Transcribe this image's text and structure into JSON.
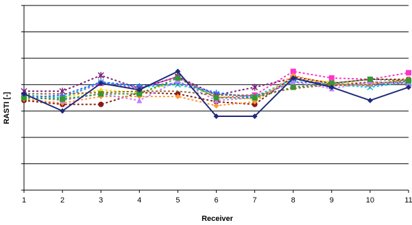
{
  "chart_data": {
    "type": "line",
    "title": "",
    "xlabel": "Receiver",
    "ylabel": "RASTI [-]",
    "x_ticks": [
      "1",
      "2",
      "3",
      "4",
      "5",
      "6",
      "7",
      "8",
      "9",
      "10",
      "11"
    ],
    "xlim": [
      1,
      11
    ],
    "ylim": [
      0,
      7
    ],
    "gridlines": true,
    "legend": "none",
    "series": [
      {
        "color": "#1f2a7a",
        "style": "solid",
        "marker": "diamond",
        "values": [
          3.65,
          3.0,
          4.05,
          3.8,
          4.5,
          2.8,
          2.8,
          4.25,
          3.9,
          3.4,
          3.9
        ]
      },
      {
        "color": "#ff33cc",
        "style": "dotted",
        "marker": "square",
        "values": [
          3.6,
          3.5,
          4.05,
          3.85,
          4.3,
          3.5,
          3.6,
          4.5,
          4.25,
          4.2,
          4.45
        ]
      },
      {
        "color": "#ffd700",
        "style": "dotted",
        "marker": "triangle",
        "values": [
          3.5,
          3.5,
          3.8,
          3.7,
          4.1,
          3.55,
          3.45,
          4.2,
          4.1,
          4.05,
          4.1
        ]
      },
      {
        "color": "#00cccc",
        "style": "dotted",
        "marker": "x",
        "values": [
          3.6,
          3.5,
          4.1,
          3.9,
          4.0,
          3.65,
          3.55,
          4.2,
          4.0,
          3.9,
          4.1
        ]
      },
      {
        "color": "#7a1f7a",
        "style": "dotted",
        "marker": "star",
        "values": [
          3.75,
          3.75,
          4.35,
          3.85,
          4.3,
          3.6,
          3.9,
          4.25,
          3.95,
          4.1,
          4.05
        ]
      },
      {
        "color": "#8b1a1a",
        "style": "dotted",
        "marker": "circle",
        "values": [
          3.4,
          3.25,
          3.25,
          3.7,
          3.65,
          3.35,
          3.25,
          4.3,
          4.05,
          4.2,
          4.2
        ]
      },
      {
        "color": "#3366ff",
        "style": "dotted",
        "marker": "plus",
        "values": [
          3.5,
          3.6,
          4.1,
          3.95,
          4.05,
          3.7,
          3.5,
          4.1,
          4.05,
          3.95,
          4.15
        ]
      },
      {
        "color": "#ff9933",
        "style": "dotted",
        "marker": "diamond",
        "values": [
          3.45,
          3.3,
          3.55,
          3.55,
          3.55,
          3.2,
          3.35,
          4.35,
          4.0,
          4.0,
          4.2
        ]
      },
      {
        "color": "#c080ff",
        "style": "dotted",
        "marker": "triangle",
        "values": [
          3.55,
          3.4,
          3.65,
          3.4,
          4.15,
          3.4,
          3.5,
          4.1,
          3.85,
          4.1,
          4.05
        ]
      },
      {
        "color": "#339933",
        "style": "dotted",
        "marker": "square",
        "values": [
          3.5,
          3.45,
          3.65,
          3.65,
          4.25,
          3.5,
          3.5,
          3.9,
          4.05,
          4.2,
          4.15
        ]
      },
      {
        "color": "#996633",
        "style": "dotted",
        "marker": "none",
        "values": [
          3.65,
          3.65,
          3.7,
          3.75,
          3.75,
          3.6,
          3.6,
          3.85,
          4.0,
          4.0,
          4.2
        ]
      }
    ]
  }
}
